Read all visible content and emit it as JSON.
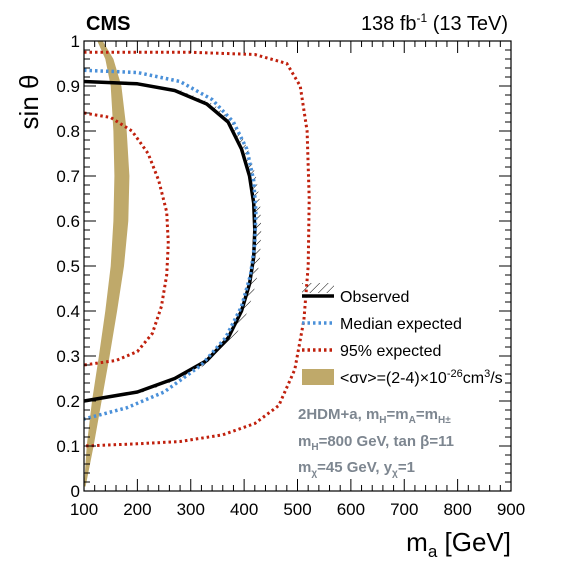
{
  "header": {
    "experiment": "CMS",
    "lumi_value": "138 fb",
    "lumi_exp": "-1",
    "energy": " (13 TeV)"
  },
  "axes": {
    "x_title_main": "m",
    "x_title_sub": "a",
    "x_title_unit": " [GeV]",
    "y_title": "sin θ"
  },
  "legend": {
    "observed": "Observed",
    "median": "Median expected",
    "expected95": "95% expected",
    "band_prefix": "<σv>=(2-4)×10",
    "band_exp": "-26",
    "band_unit": "cm",
    "band_unit_exp": "3",
    "band_suffix": "/s"
  },
  "notes": {
    "line1_a": "2HDM+a, m",
    "line1_b": "H",
    "line1_c": "=m",
    "line1_d": "A",
    "line1_e": "=m",
    "line1_f": "H±",
    "line2_a": "m",
    "line2_b": "H",
    "line2_c": "=800 GeV, tan  β=11",
    "line3_a": "m",
    "line3_b": "χ",
    "line3_c": "=45 GeV, y",
    "line3_d": "χ",
    "line3_e": "=1"
  },
  "colors": {
    "observed": "#000000",
    "median": "#4a90d9",
    "expected95": "#c0200d",
    "relic_band": "#bfa96a",
    "notes": "#7d8690"
  },
  "chart_data": {
    "type": "line",
    "title": "",
    "xlabel": "m_a [GeV]",
    "ylabel": "sin θ",
    "xlim": [
      100,
      900
    ],
    "ylim": [
      0,
      1
    ],
    "x_ticks": [
      100,
      200,
      300,
      400,
      500,
      600,
      700,
      800,
      900
    ],
    "y_ticks": [
      0,
      0.1,
      0.2,
      0.3,
      0.4,
      0.5,
      0.6,
      0.7,
      0.8,
      0.9,
      1
    ],
    "x_tick_labels": [
      "100",
      "200",
      "300",
      "400",
      "500",
      "600",
      "700",
      "800",
      "900"
    ],
    "y_tick_labels": [
      "0",
      "0.1",
      "0.2",
      "0.3",
      "0.4",
      "0.5",
      "0.6",
      "0.7",
      "0.8",
      "0.9",
      "1"
    ],
    "legend_position": "center-right",
    "series": [
      {
        "name": "Observed",
        "style": "solid",
        "points": [
          [
            100,
            0.91
          ],
          [
            200,
            0.905
          ],
          [
            270,
            0.89
          ],
          [
            330,
            0.86
          ],
          [
            370,
            0.82
          ],
          [
            395,
            0.76
          ],
          [
            410,
            0.7
          ],
          [
            418,
            0.64
          ],
          [
            420,
            0.58
          ],
          [
            418,
            0.52
          ],
          [
            410,
            0.46
          ],
          [
            395,
            0.4
          ],
          [
            370,
            0.34
          ],
          [
            330,
            0.29
          ],
          [
            270,
            0.25
          ],
          [
            200,
            0.22
          ],
          [
            100,
            0.2
          ]
        ]
      },
      {
        "name": "Median expected",
        "style": "dotted",
        "points": [
          [
            100,
            0.935
          ],
          [
            200,
            0.93
          ],
          [
            280,
            0.91
          ],
          [
            340,
            0.87
          ],
          [
            380,
            0.82
          ],
          [
            405,
            0.76
          ],
          [
            418,
            0.69
          ],
          [
            422,
            0.62
          ],
          [
            420,
            0.55
          ],
          [
            412,
            0.48
          ],
          [
            395,
            0.41
          ],
          [
            365,
            0.34
          ],
          [
            320,
            0.28
          ],
          [
            250,
            0.22
          ],
          [
            180,
            0.185
          ],
          [
            100,
            0.16
          ]
        ]
      },
      {
        "name": "95% expected (outer)",
        "style": "dotted",
        "points": [
          [
            100,
            0.975
          ],
          [
            300,
            0.975
          ],
          [
            420,
            0.97
          ],
          [
            480,
            0.95
          ],
          [
            505,
            0.9
          ],
          [
            518,
            0.8
          ],
          [
            522,
            0.65
          ],
          [
            520,
            0.5
          ],
          [
            512,
            0.38
          ],
          [
            495,
            0.27
          ],
          [
            465,
            0.19
          ],
          [
            420,
            0.15
          ],
          [
            360,
            0.125
          ],
          [
            280,
            0.11
          ],
          [
            200,
            0.105
          ],
          [
            100,
            0.1
          ]
        ]
      },
      {
        "name": "95% expected (inner)",
        "style": "dotted",
        "points": [
          [
            100,
            0.84
          ],
          [
            150,
            0.83
          ],
          [
            190,
            0.8
          ],
          [
            220,
            0.75
          ],
          [
            240,
            0.69
          ],
          [
            255,
            0.62
          ],
          [
            258,
            0.55
          ],
          [
            255,
            0.48
          ],
          [
            245,
            0.41
          ],
          [
            228,
            0.35
          ],
          [
            200,
            0.31
          ],
          [
            160,
            0.29
          ],
          [
            100,
            0.28
          ]
        ]
      },
      {
        "name": "<σv>=(2-4)×10^-26 cm^3/s",
        "type": "band",
        "left": [
          [
            125,
            1.0
          ],
          [
            140,
            0.96
          ],
          [
            150,
            0.9
          ],
          [
            155,
            0.8
          ],
          [
            157,
            0.7
          ],
          [
            155,
            0.6
          ],
          [
            150,
            0.5
          ],
          [
            140,
            0.4
          ],
          [
            128,
            0.3
          ],
          [
            115,
            0.2
          ],
          [
            105,
            0.1
          ],
          [
            100,
            0.01
          ]
        ],
        "right": [
          [
            135,
            1.0
          ],
          [
            155,
            0.96
          ],
          [
            170,
            0.9
          ],
          [
            180,
            0.8
          ],
          [
            185,
            0.7
          ],
          [
            183,
            0.6
          ],
          [
            175,
            0.5
          ],
          [
            162,
            0.4
          ],
          [
            148,
            0.3
          ],
          [
            133,
            0.2
          ],
          [
            118,
            0.1
          ],
          [
            103,
            0.01
          ]
        ]
      }
    ]
  }
}
